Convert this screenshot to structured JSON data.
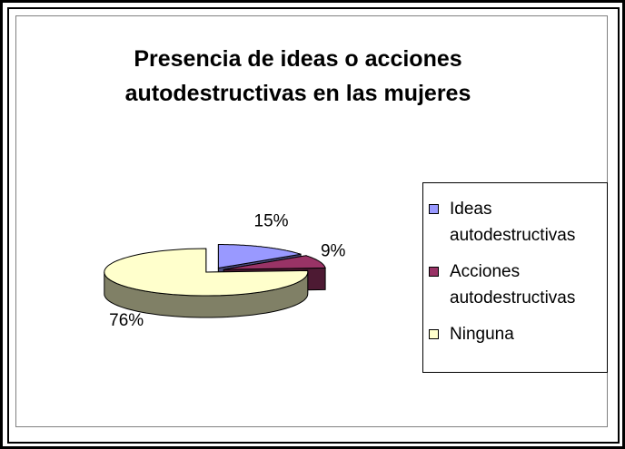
{
  "chart_data": {
    "type": "pie3d",
    "title": "Presencia de ideas o acciones autodestructivas en las mujeres",
    "categories": [
      "Ideas autodestructivas",
      "Acciones autodestructivas",
      "Ninguna"
    ],
    "values": [
      15,
      9,
      76
    ],
    "value_labels": [
      "15%",
      "9%",
      "76%"
    ],
    "colors": [
      "#9999ff",
      "#993366",
      "#ffffcc"
    ],
    "legend": "right"
  }
}
